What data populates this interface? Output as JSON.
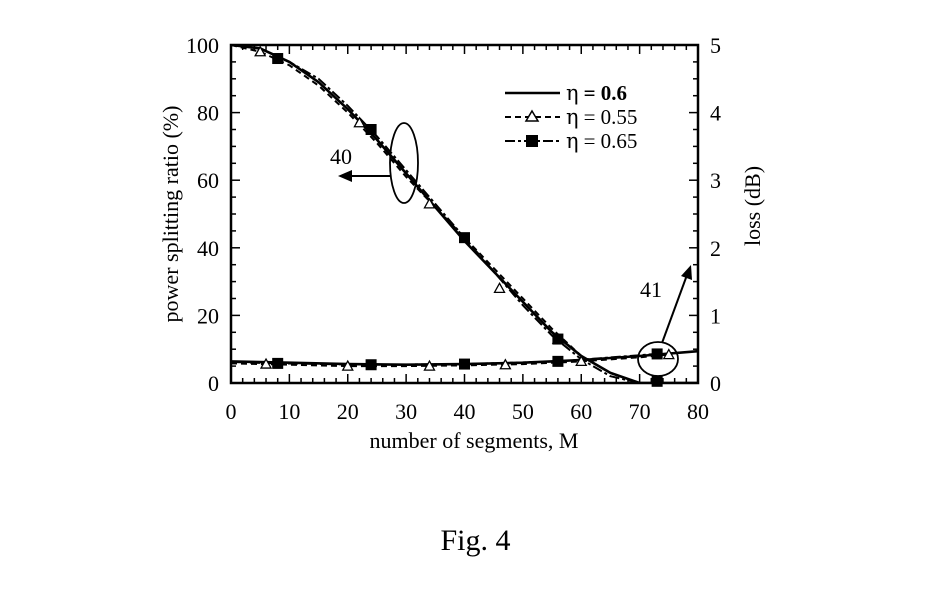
{
  "chart_data": {
    "type": "line",
    "title": "",
    "xlabel": "number of  segments, M",
    "ylabel": "power splitting ratio (%)",
    "ylabel_right": "loss (dB)",
    "xlim": [
      0,
      80
    ],
    "ylim": [
      0,
      100
    ],
    "ylim_right": [
      0,
      5
    ],
    "xticks": [
      0,
      10,
      20,
      30,
      40,
      50,
      60,
      70,
      80
    ],
    "yticks": [
      0,
      20,
      40,
      60,
      80,
      100
    ],
    "yticks_right": [
      0,
      1,
      2,
      3,
      4,
      5
    ],
    "grid": false,
    "legend_position": "top-right",
    "series": [
      {
        "name": "η = 0.6",
        "eta_symbol": "η",
        "eta_value": "= 0.6",
        "axis": "left",
        "style": "solid",
        "marker": "none",
        "x": [
          0,
          5,
          10,
          15,
          20,
          25,
          30,
          35,
          40,
          45,
          50,
          55,
          60,
          65,
          70,
          73,
          76,
          80
        ],
        "y": [
          100,
          99,
          95,
          89,
          81,
          72,
          62,
          52,
          42,
          33,
          24,
          15,
          8,
          3,
          0,
          0,
          0,
          0
        ]
      },
      {
        "name": "η = 0.55",
        "eta_symbol": "η",
        "eta_value": "= 0.55",
        "axis": "left",
        "style": "dashed",
        "marker": "triangle",
        "x": [
          0,
          5,
          10,
          15,
          20,
          25,
          30,
          35,
          40,
          45,
          50,
          55,
          60,
          65,
          70
        ],
        "y": [
          100,
          98,
          94,
          88,
          80,
          71,
          61,
          52,
          43,
          34,
          25,
          16,
          8,
          3,
          0
        ],
        "marker_x": [
          5,
          22,
          34,
          46,
          56
        ],
        "marker_y": [
          98,
          77,
          53,
          28,
          13
        ]
      },
      {
        "name": "η = 0.65",
        "eta_symbol": "η",
        "eta_value": "= 0.65",
        "axis": "left",
        "style": "dash-dot",
        "marker": "square",
        "x": [
          0,
          5,
          10,
          15,
          20,
          25,
          30,
          35,
          40,
          45,
          50,
          55,
          60,
          65,
          70,
          73
        ],
        "y": [
          100,
          99,
          95,
          90,
          82,
          73,
          63,
          53,
          43,
          33,
          23,
          14,
          7,
          2,
          0,
          0
        ],
        "marker_x": [
          8,
          24,
          40,
          56,
          73
        ],
        "marker_y": [
          96,
          75,
          43,
          13,
          0.5
        ]
      },
      {
        "name": "loss η = 0.6",
        "axis": "right",
        "style": "solid",
        "marker": "none",
        "x": [
          0,
          10,
          20,
          30,
          40,
          50,
          60,
          70,
          80
        ],
        "y": [
          0.32,
          0.3,
          0.28,
          0.27,
          0.28,
          0.3,
          0.34,
          0.4,
          0.47
        ]
      },
      {
        "name": "loss η = 0.55",
        "axis": "right",
        "style": "dashed",
        "marker": "triangle",
        "x": [
          0,
          10,
          20,
          30,
          40,
          50,
          60,
          70,
          75
        ],
        "y": [
          0.29,
          0.27,
          0.25,
          0.25,
          0.26,
          0.28,
          0.32,
          0.38,
          0.42
        ],
        "marker_x": [
          6,
          20,
          34,
          47,
          60,
          75
        ],
        "marker_y": [
          0.28,
          0.25,
          0.25,
          0.27,
          0.32,
          0.42
        ]
      },
      {
        "name": "loss η = 0.65",
        "axis": "right",
        "style": "dash-dot",
        "marker": "square",
        "x": [
          0,
          8,
          24,
          40,
          56,
          73
        ],
        "y": [
          0.31,
          0.29,
          0.27,
          0.28,
          0.32,
          0.43
        ],
        "marker_x": [
          8,
          24,
          40,
          56,
          73
        ],
        "marker_y": [
          0.29,
          0.27,
          0.28,
          0.32,
          0.43
        ]
      }
    ],
    "annotations": [
      {
        "label": "40",
        "text": "40",
        "points_to": "left axis"
      },
      {
        "label": "41",
        "text": "41",
        "points_to": "right axis"
      }
    ]
  },
  "caption": "Fig. 4"
}
